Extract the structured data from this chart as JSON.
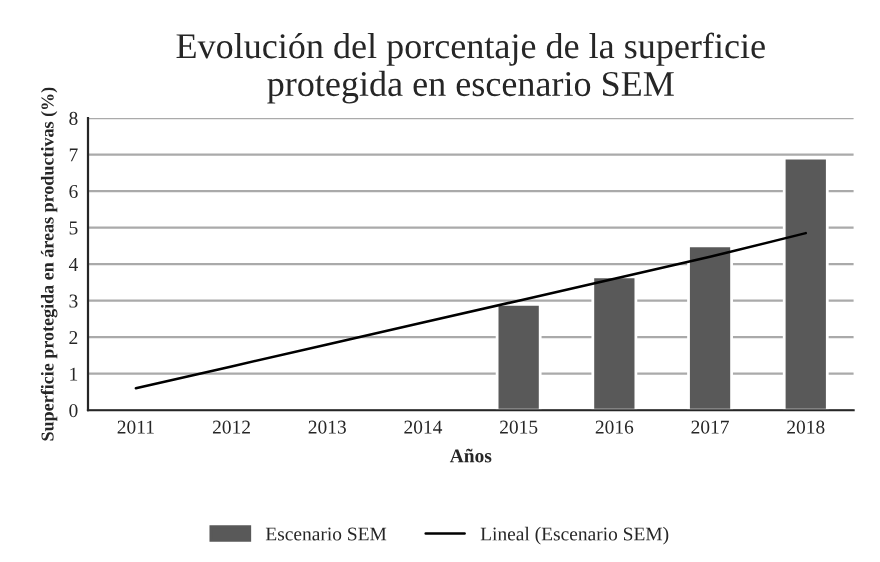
{
  "chart_data": {
    "type": "bar",
    "title": "Evolución del porcentaje de la superficie\nprotegida en escenario SEM",
    "xlabel": "Años",
    "ylabel": "Superficie protegida en áreas productivas (%)",
    "categories": [
      "2011",
      "2012",
      "2013",
      "2014",
      "2015",
      "2016",
      "2017",
      "2018"
    ],
    "series": [
      {
        "name": "Escenario SEM",
        "color": "#595959",
        "values": [
          null,
          null,
          null,
          null,
          2.9,
          3.65,
          4.5,
          6.9
        ]
      },
      {
        "name": "Lineal (Escenario SEM)",
        "type": "line",
        "color": "#000000",
        "values": [
          0.6,
          1.2,
          1.8,
          2.4,
          3.0,
          3.6,
          4.2,
          4.85
        ]
      }
    ],
    "ylim": [
      0,
      8
    ],
    "yticks": [
      0,
      1,
      2,
      3,
      4,
      5,
      6,
      7,
      8
    ],
    "grid": "y",
    "legend": "bottom"
  }
}
